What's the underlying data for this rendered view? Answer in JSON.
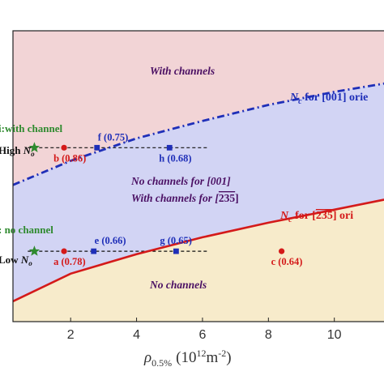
{
  "chart_data": {
    "type": "area",
    "x_range": [
      0.25,
      11.9
    ],
    "y_range": [
      0,
      1
    ],
    "xlabel_main": "ρ",
    "xlabel_sub": "0.5%",
    "xlabel_unit": "(10",
    "xlabel_exp1": "12",
    "xlabel_unit2": "m",
    "xlabel_exp2": "-2",
    "xlabel_close": ")",
    "x_ticks": [
      2,
      4,
      6,
      8,
      10
    ],
    "x_tick_labels": [
      "2",
      "4",
      "6",
      "8",
      "10"
    ],
    "regions": [
      {
        "name": "with-channels",
        "color": "#f2d4d6"
      },
      {
        "name": "no-channels-001",
        "color": "#d2d4f4"
      },
      {
        "name": "no-channels",
        "color": "#f7ebcb"
      }
    ],
    "curves": [
      {
        "id": "nc-001",
        "color": "#1f2fb8",
        "style": "dashdot",
        "points": [
          [
            0.25,
            0.47
          ],
          [
            2,
            0.553
          ],
          [
            4,
            0.63
          ],
          [
            6,
            0.69
          ],
          [
            8,
            0.745
          ],
          [
            10,
            0.79
          ],
          [
            11.9,
            0.826
          ]
        ]
      },
      {
        "id": "nc-235",
        "color": "#d41a1a",
        "style": "solid",
        "points": [
          [
            0.25,
            0.07
          ],
          [
            2,
            0.165
          ],
          [
            4,
            0.232
          ],
          [
            6,
            0.29
          ],
          [
            8,
            0.34
          ],
          [
            10,
            0.385
          ],
          [
            11.9,
            0.428
          ]
        ]
      }
    ],
    "reference_lines": [
      {
        "id": "high-no",
        "y": 0.598
      },
      {
        "id": "low-no",
        "y": 0.242
      }
    ],
    "stars": [
      {
        "id": "star-high",
        "x": 0.9,
        "y": 0.598
      },
      {
        "id": "star-low",
        "x": 0.9,
        "y": 0.242
      }
    ],
    "points": [
      {
        "label": "b (0.86)",
        "x": 1.8,
        "y": 0.598,
        "color": "#d41a1a",
        "shape": "circle"
      },
      {
        "label": "f (0.75)",
        "x": 2.8,
        "y": 0.598,
        "color": "#1f2fb8",
        "shape": "square"
      },
      {
        "label": "h (0.68)",
        "x": 5.0,
        "y": 0.598,
        "color": "#1f2fb8",
        "shape": "square"
      },
      {
        "label": "a (0.78)",
        "x": 1.8,
        "y": 0.242,
        "color": "#d41a1a",
        "shape": "circle"
      },
      {
        "label": "e (0.66)",
        "x": 2.7,
        "y": 0.242,
        "color": "#1f2fb8",
        "shape": "square"
      },
      {
        "label": "g (0.65)",
        "x": 5.2,
        "y": 0.242,
        "color": "#1f2fb8",
        "shape": "square"
      },
      {
        "label": "c (0.64)",
        "x": 8.4,
        "y": 0.242,
        "color": "#d41a1a",
        "shape": "circle"
      }
    ],
    "region_labels": {
      "with_channels": "With channels",
      "no_channels_001": "No channels for [001]",
      "with_channels_235_prefix": "With channels for [",
      "with_channels_235_digits": "235",
      "with_channels_235_suffix": "]",
      "no_channels": "No channels"
    },
    "curve_labels": {
      "nc001_n": "N",
      "nc001_sub": "c",
      "nc001_rest": " for [001] orie",
      "nc235_n": "N",
      "nc235_sub": "c",
      "nc235_mid": " for [",
      "nc235_digits": "235",
      "nc235_end": "] ori"
    },
    "side_labels": {
      "top_left": "i:with channel",
      "high_prefix": "High ",
      "high_n": "N",
      "high_sub": "o",
      "bottom_left": ": no channel",
      "low_prefix": "Low ",
      "low_n": "N",
      "low_sub": "o"
    }
  }
}
